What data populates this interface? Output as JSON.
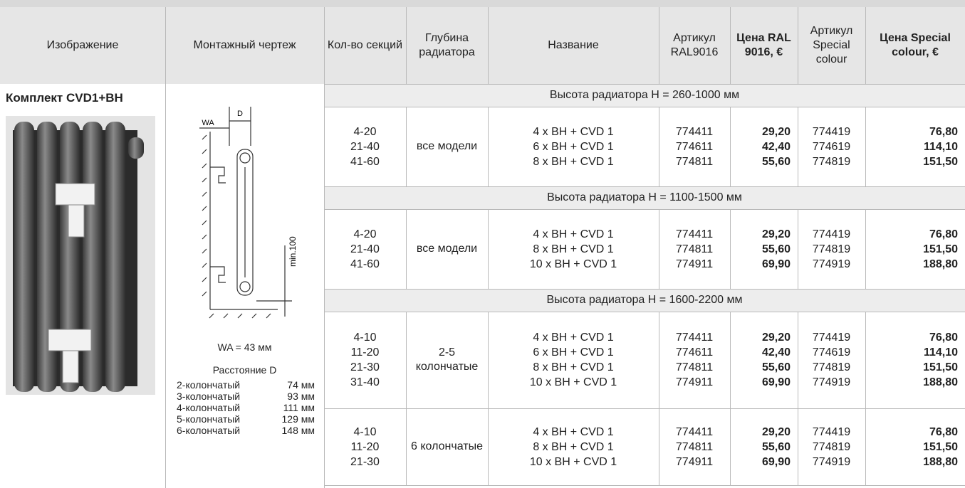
{
  "header": {
    "columns": [
      "Изображение",
      "Монтажный чертеж",
      "Кол-во секций",
      "Глубина радиатора",
      "Название",
      "Артикул RAL9016",
      "Цена RAL 9016, €",
      "Артикул Special colour",
      "Цена Special colour, €"
    ]
  },
  "product": {
    "title": "Комплект CVD1+BH"
  },
  "drawing": {
    "label_d": "D",
    "label_wa": "WA",
    "label_min": "min.100",
    "wa_note": "WA = 43 мм",
    "distance_title": "Расстояние D",
    "distances": [
      [
        "2-колончатый",
        "74 мм"
      ],
      [
        "3-колончатый",
        "93 мм"
      ],
      [
        "4-колончатый",
        "111 мм"
      ],
      [
        "5-колончатый",
        "129 мм"
      ],
      [
        "6-колончатый",
        "148 мм"
      ]
    ]
  },
  "sections": [
    {
      "title": "Высота радиатора H = 260-1000 мм",
      "blocks": [
        {
          "sections": [
            "4-20",
            "21-40",
            "41-60"
          ],
          "depth": "все модели",
          "names": [
            "4 x BH + CVD 1",
            "6 x BH + CVD 1",
            "8 x BH + CVD 1"
          ],
          "art_ral": [
            "774411",
            "774611",
            "774811"
          ],
          "price_ral": [
            "29,20",
            "42,40",
            "55,60"
          ],
          "art_special": [
            "774419",
            "774619",
            "774819"
          ],
          "price_special": [
            "76,80",
            "114,10",
            "151,50"
          ]
        }
      ]
    },
    {
      "title": "Высота радиатора H = 1100-1500 мм",
      "blocks": [
        {
          "sections": [
            "4-20",
            "21-40",
            "41-60"
          ],
          "depth": "все модели",
          "names": [
            "4 x BH + CVD 1",
            "8 x BH + CVD 1",
            "10 x BH + CVD 1"
          ],
          "art_ral": [
            "774411",
            "774811",
            "774911"
          ],
          "price_ral": [
            "29,20",
            "55,60",
            "69,90"
          ],
          "art_special": [
            "774419",
            "774819",
            "774919"
          ],
          "price_special": [
            "76,80",
            "151,50",
            "188,80"
          ]
        }
      ]
    },
    {
      "title": "Высота радиатора H = 1600-2200 мм",
      "blocks": [
        {
          "sections": [
            "4-10",
            "11-20",
            "21-30",
            "31-40"
          ],
          "depth": "2-5 колончатые",
          "names": [
            "4 x BH + CVD 1",
            "6 x BH + CVD 1",
            "8 x BH + CVD 1",
            "10 x BH + CVD 1"
          ],
          "art_ral": [
            "774411",
            "774611",
            "774811",
            "774911"
          ],
          "price_ral": [
            "29,20",
            "42,40",
            "55,60",
            "69,90"
          ],
          "art_special": [
            "774419",
            "774619",
            "774819",
            "774919"
          ],
          "price_special": [
            "76,80",
            "114,10",
            "151,50",
            "188,80"
          ]
        },
        {
          "sections": [
            "4-10",
            "11-20",
            "21-30"
          ],
          "depth": "6 колончатые",
          "names": [
            "4 x BH + CVD 1",
            "8 x BH + CVD 1",
            "10 x BH + CVD 1"
          ],
          "art_ral": [
            "774411",
            "774811",
            "774911"
          ],
          "price_ral": [
            "29,20",
            "55,60",
            "69,90"
          ],
          "art_special": [
            "774419",
            "774819",
            "774919"
          ],
          "price_special": [
            "76,80",
            "151,50",
            "188,80"
          ]
        }
      ]
    }
  ]
}
